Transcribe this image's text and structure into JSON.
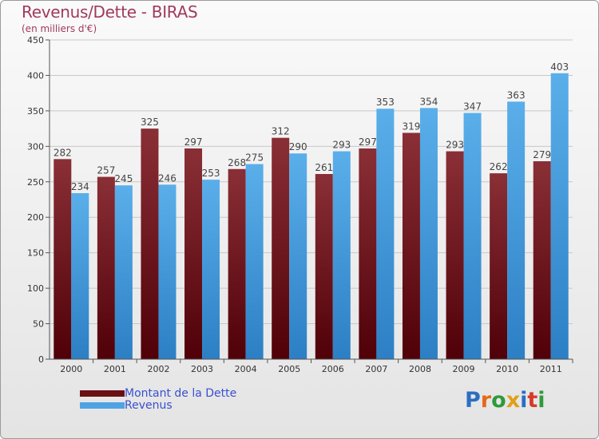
{
  "title": "Revenus/Dette - BIRAS",
  "subtitle": "(en milliers d'€)",
  "logo": {
    "letters": [
      "P",
      "r",
      "o",
      "x",
      "i",
      "t",
      "i"
    ],
    "colors": [
      "#2c6ec2",
      "#e56b1a",
      "#2f9a3a",
      "#e0a018",
      "#2c6ec2",
      "#d63a2a",
      "#2f9a3a"
    ]
  },
  "legend": [
    {
      "label": "Montant de la Dette",
      "color": "#6b0f14"
    },
    {
      "label": "Revenus",
      "color": "#4fa3e3"
    }
  ],
  "chart_data": {
    "type": "bar",
    "categories": [
      "2000",
      "2001",
      "2002",
      "2003",
      "2004",
      "2005",
      "2006",
      "2007",
      "2008",
      "2009",
      "2010",
      "2011"
    ],
    "series": [
      {
        "name": "Montant de la Dette",
        "values": [
          282,
          257,
          325,
          297,
          268,
          312,
          261,
          297,
          319,
          293,
          262,
          279
        ],
        "color": "#6b0f14"
      },
      {
        "name": "Revenus",
        "values": [
          234,
          245,
          246,
          253,
          275,
          290,
          293,
          353,
          354,
          347,
          363,
          403
        ],
        "color": "#4fa3e3"
      }
    ],
    "yticks": [
      0,
      50,
      100,
      150,
      200,
      250,
      300,
      350,
      400,
      450
    ],
    "ylim": [
      0,
      450
    ],
    "grid": true
  }
}
